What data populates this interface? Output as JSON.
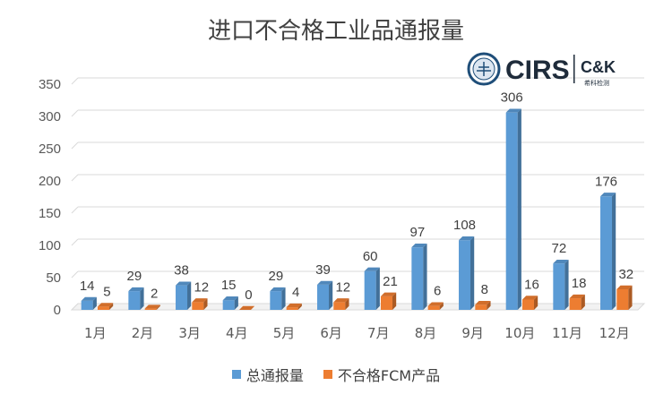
{
  "chart_data": {
    "type": "bar",
    "title": "进口不合格工业品通报量",
    "categories": [
      "1月",
      "2月",
      "3月",
      "4月",
      "5月",
      "6月",
      "7月",
      "8月",
      "9月",
      "10月",
      "11月",
      "12月"
    ],
    "series": [
      {
        "name": "总通报量",
        "color": "#5B9BD5",
        "values": [
          14,
          29,
          38,
          15,
          29,
          39,
          60,
          97,
          108,
          306,
          72,
          176
        ]
      },
      {
        "name": "不合格FCM产品",
        "color": "#ED7D31",
        "values": [
          5,
          2,
          12,
          0,
          4,
          12,
          21,
          6,
          8,
          16,
          18,
          32
        ]
      }
    ],
    "ylim": [
      0,
      350
    ],
    "yticks": [
      0,
      50,
      100,
      150,
      200,
      250,
      300,
      350
    ],
    "grid": true,
    "legend": "bottom",
    "style": "3d-column"
  },
  "logo": {
    "brand": "CIRS",
    "partner": "C&K",
    "subtitle": "希科检测"
  }
}
